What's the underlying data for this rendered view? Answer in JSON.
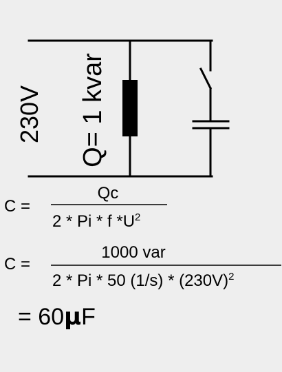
{
  "circuit": {
    "voltage_label": "230V",
    "reactive_power_label": "Q= 1 kvar"
  },
  "formula1": {
    "lhs": "C =",
    "numerator": "Qc",
    "denominator_main": "2 * Pi * f *U",
    "denominator_sup": "2"
  },
  "formula2": {
    "lhs": "C =",
    "numerator": "1000 var",
    "denominator_main": "2 * Pi * 50 (1/s) * (230V)",
    "denominator_sup": "2"
  },
  "result": {
    "prefix": "= 60",
    "mu": "μ",
    "unit": "F"
  }
}
